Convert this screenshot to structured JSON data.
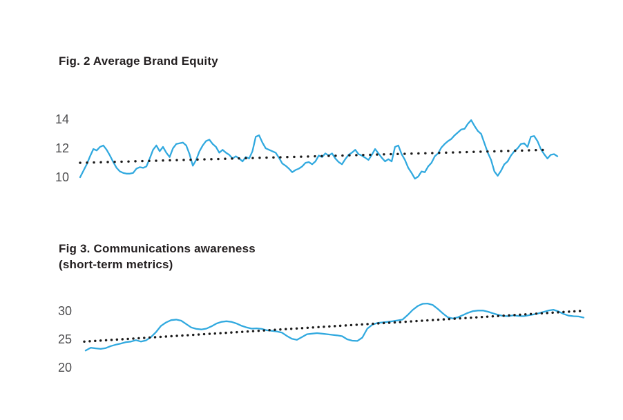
{
  "colors": {
    "background": "#ffffff",
    "line_blue": "#31a9df",
    "trend_dots": "#1b1b1b",
    "title_text": "#231f20",
    "axis_text": "#4d4d4f"
  },
  "chart_data": [
    {
      "type": "line",
      "title": "Fig. 2 Average Brand Equity",
      "title_lines": [
        "Fig. 2 Average Brand Equity"
      ],
      "xlabel": "",
      "ylabel": "",
      "yticks": [
        14,
        12,
        10
      ],
      "ylim": [
        9.0,
        15.2
      ],
      "grid": false,
      "legend": "none",
      "x_axis_labels_visible": false,
      "series": [
        {
          "name": "blue-line",
          "style": "solid",
          "values": [
            10.0,
            10.45,
            10.9,
            11.45,
            11.95,
            11.85,
            12.1,
            12.2,
            11.9,
            11.5,
            11.05,
            10.65,
            10.4,
            10.3,
            10.25,
            10.25,
            10.3,
            10.6,
            10.7,
            10.65,
            10.75,
            11.3,
            11.9,
            12.2,
            11.8,
            12.1,
            11.7,
            11.4,
            12.0,
            12.3,
            12.35,
            12.4,
            12.2,
            11.6,
            10.8,
            11.2,
            11.8,
            12.2,
            12.5,
            12.6,
            12.3,
            12.1,
            11.7,
            11.9,
            11.7,
            11.55,
            11.3,
            11.45,
            11.3,
            11.1,
            11.4,
            11.3,
            11.8,
            12.8,
            12.9,
            12.4,
            12.0,
            11.9,
            11.8,
            11.7,
            11.35,
            10.95,
            10.8,
            10.6,
            10.35,
            10.5,
            10.6,
            10.75,
            11.0,
            11.05,
            10.9,
            11.1,
            11.5,
            11.4,
            11.65,
            11.5,
            11.65,
            11.3,
            11.05,
            10.9,
            11.25,
            11.55,
            11.7,
            11.9,
            11.6,
            11.5,
            11.35,
            11.2,
            11.55,
            11.95,
            11.65,
            11.35,
            11.1,
            11.25,
            11.1,
            12.1,
            12.2,
            11.6,
            11.2,
            10.65,
            10.3,
            9.9,
            10.05,
            10.4,
            10.35,
            10.75,
            11.0,
            11.45,
            11.65,
            12.05,
            12.3,
            12.5,
            12.65,
            12.9,
            13.1,
            13.3,
            13.35,
            13.7,
            13.95,
            13.55,
            13.2,
            13.0,
            12.35,
            11.7,
            11.2,
            10.4,
            10.1,
            10.45,
            10.9,
            11.1,
            11.5,
            11.8,
            12.0,
            12.3,
            12.35,
            12.1,
            12.8,
            12.85,
            12.5,
            11.95,
            11.6,
            11.3,
            11.55,
            11.6,
            11.45
          ]
        },
        {
          "name": "dotted-trend-line",
          "style": "dotted",
          "start_value": 11.0,
          "end_value": 11.9
        }
      ]
    },
    {
      "type": "line",
      "title": "Fig 3. Communications awareness (short-term metrics)",
      "title_lines": [
        "Fig 3. Communications awareness",
        "(short-term metrics)"
      ],
      "xlabel": "",
      "ylabel": "",
      "yticks": [
        30,
        25,
        20
      ],
      "ylim": [
        17.9,
        33.2
      ],
      "grid": false,
      "legend": "none",
      "x_axis_labels_visible": false,
      "series": [
        {
          "name": "blue-line",
          "style": "solid",
          "values": [
            23.0,
            23.5,
            23.4,
            23.3,
            23.45,
            23.8,
            24.05,
            24.25,
            24.5,
            24.6,
            24.85,
            24.6,
            24.8,
            25.4,
            26.3,
            27.4,
            28.0,
            28.4,
            28.5,
            28.3,
            27.7,
            27.1,
            26.85,
            26.75,
            26.9,
            27.3,
            27.8,
            28.1,
            28.2,
            28.1,
            27.8,
            27.4,
            27.1,
            26.9,
            26.95,
            26.85,
            26.6,
            26.5,
            26.4,
            26.2,
            25.6,
            25.1,
            24.9,
            25.4,
            25.9,
            26.0,
            26.1,
            26.0,
            25.9,
            25.8,
            25.7,
            25.55,
            25.0,
            24.75,
            24.7,
            25.3,
            26.9,
            27.6,
            27.9,
            28.0,
            28.1,
            28.2,
            28.35,
            28.5,
            29.3,
            30.2,
            30.9,
            31.3,
            31.35,
            31.1,
            30.4,
            29.6,
            28.9,
            28.7,
            28.9,
            29.3,
            29.7,
            30.0,
            30.1,
            30.1,
            29.9,
            29.6,
            29.35,
            29.15,
            29.1,
            29.25,
            29.15,
            29.1,
            29.25,
            29.4,
            29.6,
            29.85,
            30.1,
            30.25,
            29.95,
            29.5,
            29.2,
            29.1,
            29.05,
            28.85
          ]
        },
        {
          "name": "dotted-trend-line",
          "style": "dotted",
          "start_value": 24.6,
          "end_value": 30.05
        }
      ]
    }
  ]
}
